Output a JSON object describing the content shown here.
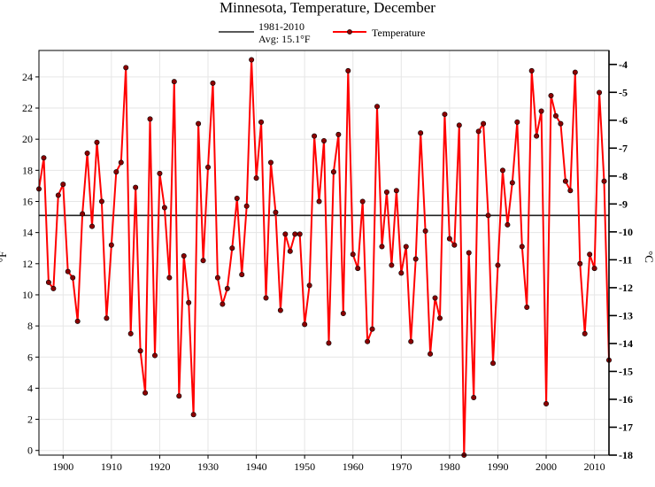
{
  "chart_data": {
    "type": "line",
    "title": "Minnesota, Temperature, December",
    "ylabel": "°F",
    "ylabel_right": "°C",
    "xlim": [
      1895,
      2013
    ],
    "ylim": [
      -0.3,
      25.7
    ],
    "ylim_right": [
      -18,
      -3.5
    ],
    "x_ticks": [
      1900,
      1910,
      1920,
      1930,
      1940,
      1950,
      1960,
      1970,
      1980,
      1990,
      2000,
      2010
    ],
    "y_ticks": [
      0,
      2,
      4,
      6,
      8,
      10,
      12,
      14,
      16,
      18,
      20,
      22,
      24
    ],
    "y_ticks_right": [
      -4,
      -5,
      -6,
      -7,
      -8,
      -9,
      -10,
      -11,
      -12,
      -13,
      -14,
      -15,
      -16,
      -17,
      -18
    ],
    "grid": true,
    "legend_position": "top-center",
    "legend": {
      "avg_line1": "1981-2010",
      "avg_line2": "Avg: 15.1°F",
      "series_label": "Temperature"
    },
    "average": 15.1,
    "colors": {
      "series": "#ff0000",
      "marker": "#8b0000",
      "average": "#222222"
    },
    "series": [
      {
        "name": "Temperature",
        "x": [
          1895,
          1896,
          1897,
          1898,
          1899,
          1900,
          1901,
          1902,
          1903,
          1904,
          1905,
          1906,
          1907,
          1908,
          1909,
          1910,
          1911,
          1912,
          1913,
          1914,
          1915,
          1916,
          1917,
          1918,
          1919,
          1920,
          1921,
          1922,
          1923,
          1924,
          1925,
          1926,
          1927,
          1928,
          1929,
          1930,
          1931,
          1932,
          1933,
          1934,
          1935,
          1936,
          1937,
          1938,
          1939,
          1940,
          1941,
          1942,
          1943,
          1944,
          1945,
          1946,
          1947,
          1948,
          1949,
          1950,
          1951,
          1952,
          1953,
          1954,
          1955,
          1956,
          1957,
          1958,
          1959,
          1960,
          1961,
          1962,
          1963,
          1964,
          1965,
          1966,
          1967,
          1968,
          1969,
          1970,
          1971,
          1972,
          1973,
          1974,
          1975,
          1976,
          1977,
          1978,
          1979,
          1980,
          1981,
          1982,
          1983,
          1984,
          1985,
          1986,
          1987,
          1988,
          1989,
          1990,
          1991,
          1992,
          1993,
          1994,
          1995,
          1996,
          1997,
          1998,
          1999,
          2000,
          2001,
          2002,
          2003,
          2004,
          2005,
          2006,
          2007,
          2008,
          2009,
          2010,
          2011,
          2012,
          2013
        ],
        "values": [
          16.8,
          18.8,
          10.8,
          10.4,
          16.4,
          17.1,
          11.5,
          11.1,
          8.3,
          15.2,
          19.1,
          14.4,
          19.8,
          16.0,
          8.5,
          13.2,
          17.9,
          18.5,
          24.6,
          7.5,
          16.9,
          6.4,
          3.7,
          21.3,
          6.1,
          17.8,
          15.6,
          11.1,
          23.7,
          3.5,
          12.5,
          9.5,
          2.3,
          21.0,
          12.2,
          18.2,
          23.6,
          11.1,
          9.4,
          10.4,
          13.0,
          16.2,
          11.3,
          15.7,
          25.1,
          17.5,
          21.1,
          9.8,
          18.5,
          15.3,
          9.0,
          13.9,
          12.8,
          13.9,
          13.9,
          8.1,
          10.6,
          20.2,
          16.0,
          19.9,
          6.9,
          17.9,
          20.3,
          8.8,
          24.4,
          12.6,
          11.7,
          16.0,
          7.0,
          7.8,
          22.1,
          13.1,
          16.6,
          11.9,
          16.7,
          11.4,
          13.1,
          7.0,
          12.3,
          20.4,
          14.1,
          6.2,
          9.8,
          8.5,
          21.6,
          13.6,
          13.2,
          20.9,
          -0.3,
          12.7,
          3.4,
          20.5,
          21.0,
          15.1,
          5.6,
          11.9,
          18.0,
          14.5,
          17.2,
          21.1,
          13.1,
          9.2,
          24.4,
          20.2,
          21.8,
          3.0,
          22.8,
          21.5,
          21.0,
          17.3,
          16.7,
          24.3,
          12.0,
          7.5,
          12.6,
          11.7,
          23.0,
          17.3,
          5.8
        ]
      }
    ]
  }
}
